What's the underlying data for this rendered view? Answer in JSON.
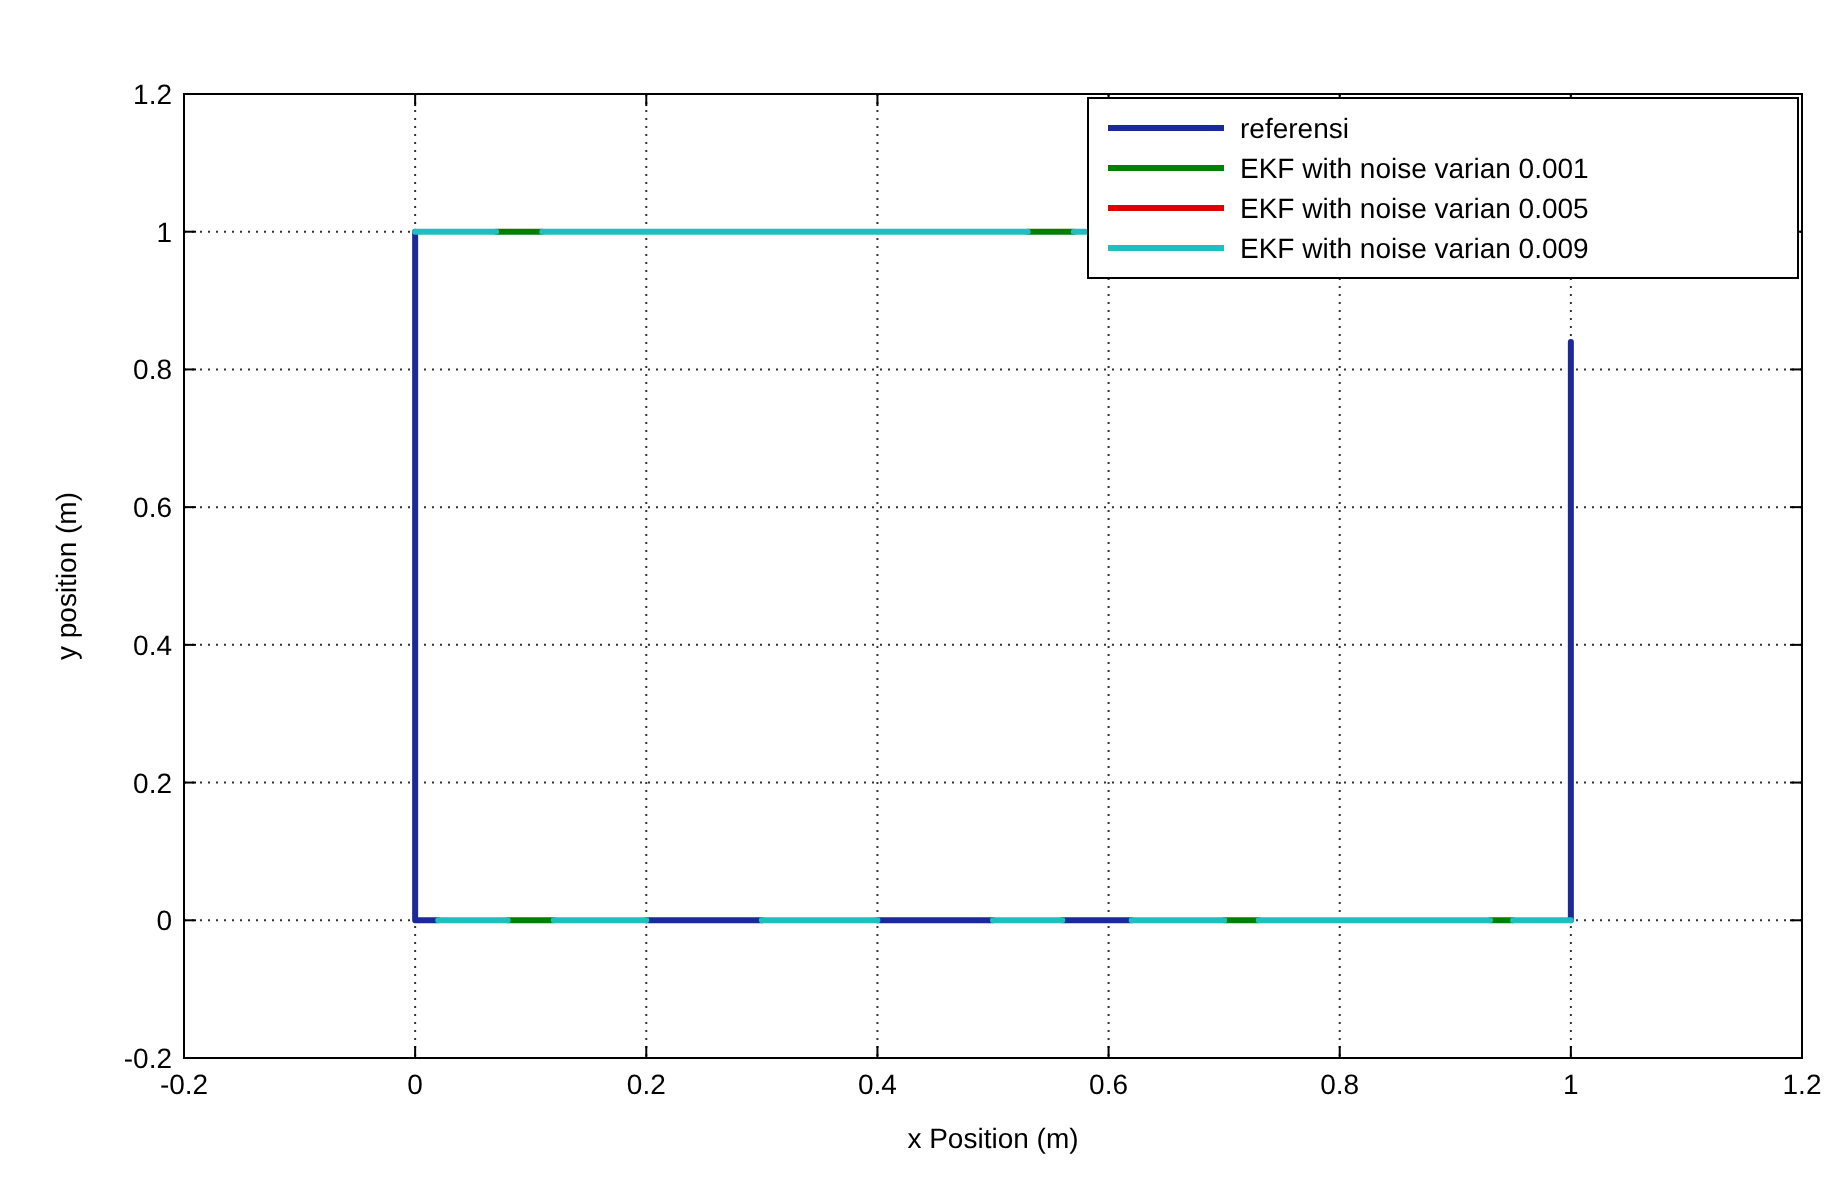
{
  "chart_data": {
    "type": "line",
    "xlabel": "x Position (m)",
    "ylabel": "y position (m)",
    "xlim": [
      -0.2,
      1.2
    ],
    "ylim": [
      -0.2,
      1.2
    ],
    "xticks": [
      -0.2,
      0,
      0.2,
      0.4,
      0.6,
      0.8,
      1,
      1.2
    ],
    "yticks": [
      -0.2,
      0,
      0.2,
      0.4,
      0.6,
      0.8,
      1,
      1.2
    ],
    "grid": true,
    "legend": "top right",
    "line_style": "solid",
    "marker": "none",
    "series": [
      {
        "name": "referensi",
        "color": "#1a2a9a",
        "x": [
          0,
          0,
          0,
          0.02,
          null,
          0.2,
          0.3,
          null,
          0.4,
          0.5,
          null,
          0.56,
          0.62,
          null,
          1,
          1
        ],
        "values": [
          1,
          0,
          0,
          0,
          null,
          0,
          0,
          null,
          0,
          0,
          null,
          0,
          0,
          null,
          0,
          0.84
        ]
      },
      {
        "name": "EKF with noise varian 0.001",
        "color": "#008000",
        "x": [
          0.07,
          0.11,
          null,
          0.53,
          0.57,
          null,
          0.08,
          0.12,
          null,
          0.7,
          0.73,
          null,
          0.93,
          0.95
        ],
        "values": [
          1,
          1,
          null,
          1,
          1,
          null,
          0,
          0,
          null,
          0,
          0,
          null,
          0,
          0
        ]
      },
      {
        "name": "EKF with noise varian 0.005",
        "color": "#e00000",
        "x": [
          null
        ],
        "values": [
          null
        ]
      },
      {
        "name": "EKF with noise varian 0.009",
        "color": "#1fbfbf",
        "x": [
          0,
          0.07,
          null,
          0.11,
          0.53,
          null,
          0.57,
          0.58,
          null,
          0.02,
          0.08,
          null,
          0.12,
          0.2,
          null,
          0.3,
          0.4,
          null,
          0.5,
          0.56,
          null,
          0.62,
          0.7,
          null,
          0.73,
          0.93,
          null,
          0.95,
          1
        ],
        "values": [
          1,
          1,
          null,
          1,
          1,
          null,
          1,
          1,
          null,
          0,
          0,
          null,
          0,
          0,
          null,
          0,
          0,
          null,
          0,
          0,
          null,
          0,
          0,
          null,
          0,
          0,
          null,
          0,
          0
        ]
      }
    ]
  }
}
